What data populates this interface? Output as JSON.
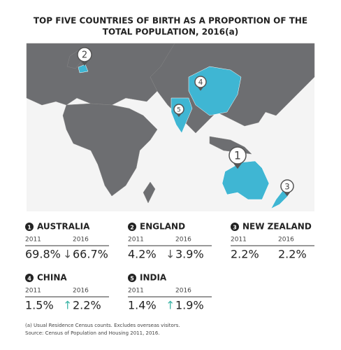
{
  "title_lines": [
    "TOP FIVE COUNTRIES OF BIRTH AS A PROPORTION OF THE",
    "TOTAL POPULATION, 2016(a)"
  ],
  "countries": [
    {
      "rank": "1",
      "name": "AUSTRALIA",
      "year1": "2011",
      "value1": "69.8%",
      "year2": "2016",
      "trend": "↓",
      "value2": "66.7%"
    },
    {
      "rank": "2",
      "name": "ENGLAND",
      "year1": "2011",
      "value1": "4.2%",
      "year2": "2016",
      "trend": "↓",
      "value2": "3.9%"
    },
    {
      "rank": "3",
      "name": "NEW ZEALAND",
      "year1": "2011",
      "value1": "2.2%",
      "year2": "2016",
      "value2": "2.2%"
    },
    {
      "rank": "4",
      "name": "CHINA",
      "year1": "2011",
      "value1": "1.5%",
      "year2": "2016",
      "trend": "↑",
      "value2": "2.2%"
    },
    {
      "rank": "5",
      "name": "INDIA",
      "year1": "2011",
      "value1": "1.4%",
      "year2": "2016",
      "trend": "↑",
      "value2": "1.9%"
    }
  ],
  "notes": [
    "(a) Usual Residence Census counts. Excludes overseas visitors.",
    "Source: Census of Population and Housing 2011, 2016."
  ]
}
